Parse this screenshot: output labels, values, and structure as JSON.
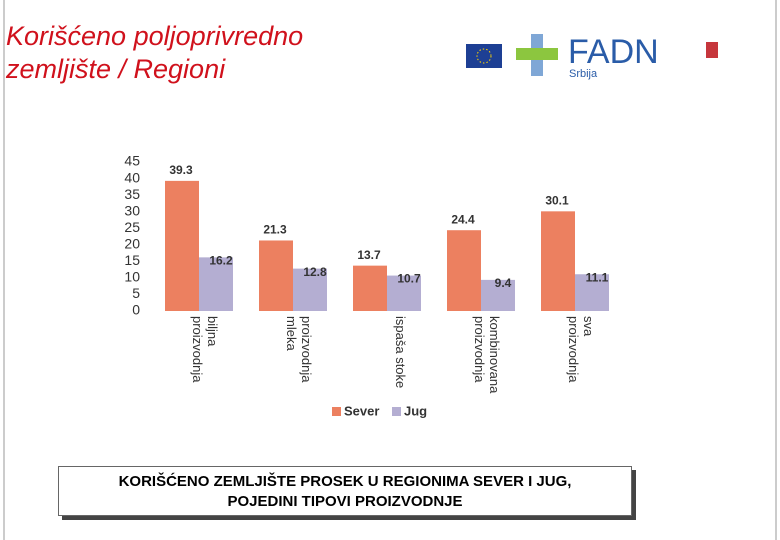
{
  "title_lines": [
    "Korišćeno poljoprivredno",
    "zemljište / Regioni"
  ],
  "logo": {
    "name": "FADN",
    "sub": "Srbija"
  },
  "chart_data": {
    "type": "bar",
    "categories": [
      "biljna proizvodnja",
      "proizvodnja mleka",
      "ispaša stoke",
      "kombinovana proizvodnja",
      "sva proizvodnja"
    ],
    "series": [
      {
        "name": "Sever",
        "color": "#ec8060",
        "values": [
          39.3,
          21.3,
          13.7,
          24.4,
          30.1
        ]
      },
      {
        "name": "Jug",
        "color": "#b4aed2",
        "values": [
          16.2,
          12.8,
          10.7,
          9.4,
          11.1
        ]
      }
    ],
    "ylim": [
      0,
      45
    ],
    "yticks": [
      0,
      5,
      10,
      15,
      20,
      25,
      30,
      35,
      40,
      45
    ],
    "grid": false,
    "legend": "bottom"
  },
  "caption_lines": [
    "KORIŠĆENO ZEMLJIŠTE PROSEK U REGIONIMA SEVER I JUG,",
    "POJEDINI TIPOVI PROIZVODNJE"
  ]
}
